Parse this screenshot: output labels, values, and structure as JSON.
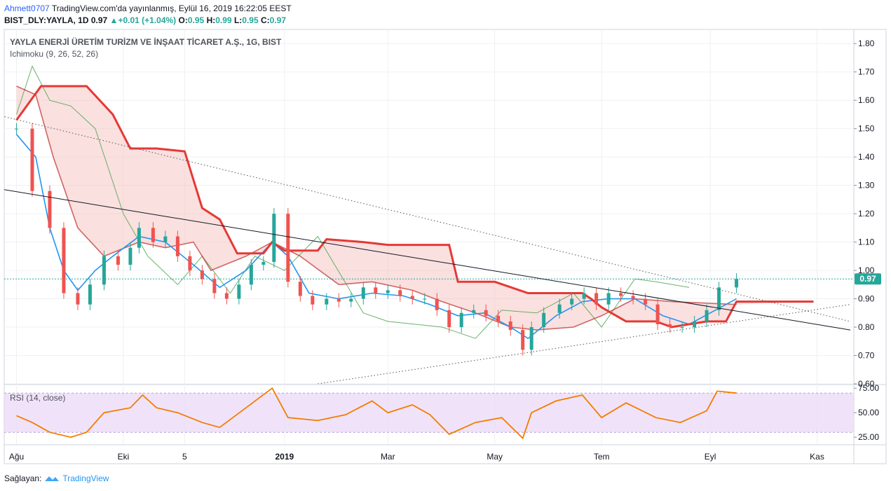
{
  "header": {
    "user": "Ahmett0707",
    "published": "TradingView.com'da yayınlanmış, Eylül 16, 2019 16:22:05 EEST",
    "symbol_line": "BIST_DLY:YAYLA, 1D",
    "last": "0.97",
    "change": "+0.01 (+1.04%)",
    "ohlc_o_label": "O:",
    "ohlc_o": "0.95",
    "ohlc_h_label": "H:",
    "ohlc_h": "0.99",
    "ohlc_l_label": "L:",
    "ohlc_l": "0.95",
    "ohlc_c_label": "C:",
    "ohlc_c": "0.97"
  },
  "footer": {
    "label": "Sağlayan:",
    "brand": "TradingView"
  },
  "colors": {
    "candle_up": "#26a69a",
    "candle_down": "#ef5350",
    "tenkan": "#2196f3",
    "kijun": "#b71c1c",
    "kijun_shift": "#e53935",
    "lagging": "#43a047",
    "cloud_green": "#a5d6a7",
    "cloud_red": "#f5c6c5",
    "rsi_line": "#f57c00",
    "rsi_band": "#e9d7f7",
    "last_price_badge": "#26a69a"
  },
  "chart_data": [
    {
      "type": "candlestick",
      "title": "YAYLA ENERJİ ÜRETİM TURİZM VE İNŞAAT TİCARET A.Ş., 1G, BIST",
      "indicator": "Ichimoku (9, 26, 52, 26)",
      "ylim": [
        0.6,
        1.85
      ],
      "y_ticks": [
        "0.60",
        "0.70",
        "0.80",
        "0.90",
        "1.00",
        "1.10",
        "1.20",
        "1.30",
        "1.40",
        "1.50",
        "1.60",
        "1.70",
        "1.80"
      ],
      "x_ticks": [
        "Ağu",
        "Eki",
        "5",
        "2019",
        "Mar",
        "May",
        "Tem",
        "Eyl",
        "Kas"
      ],
      "last_price": 0.97,
      "last_price_label": "0.97",
      "close_series": [
        {
          "x": "2018-08-01",
          "y": 1.5
        },
        {
          "x": "2018-08-10",
          "y": 1.28
        },
        {
          "x": "2018-08-20",
          "y": 1.15
        },
        {
          "x": "2018-08-28",
          "y": 0.92
        },
        {
          "x": "2018-09-05",
          "y": 0.88
        },
        {
          "x": "2018-09-12",
          "y": 0.95
        },
        {
          "x": "2018-09-20",
          "y": 1.05
        },
        {
          "x": "2018-09-28",
          "y": 1.02
        },
        {
          "x": "2018-10-05",
          "y": 1.08
        },
        {
          "x": "2018-10-10",
          "y": 1.15
        },
        {
          "x": "2018-10-18",
          "y": 1.1
        },
        {
          "x": "2018-10-25",
          "y": 1.12
        },
        {
          "x": "2018-11-01",
          "y": 1.05
        },
        {
          "x": "2018-11-08",
          "y": 1.0
        },
        {
          "x": "2018-11-15",
          "y": 0.97
        },
        {
          "x": "2018-11-22",
          "y": 0.92
        },
        {
          "x": "2018-11-29",
          "y": 0.9
        },
        {
          "x": "2018-12-06",
          "y": 0.95
        },
        {
          "x": "2018-12-13",
          "y": 1.02
        },
        {
          "x": "2018-12-20",
          "y": 1.03
        },
        {
          "x": "2018-12-26",
          "y": 1.2
        },
        {
          "x": "2019-01-03",
          "y": 0.96
        },
        {
          "x": "2019-01-10",
          "y": 0.91
        },
        {
          "x": "2019-01-17",
          "y": 0.88
        },
        {
          "x": "2019-01-25",
          "y": 0.9
        },
        {
          "x": "2019-02-01",
          "y": 0.89
        },
        {
          "x": "2019-02-08",
          "y": 0.9
        },
        {
          "x": "2019-02-15",
          "y": 0.94
        },
        {
          "x": "2019-02-22",
          "y": 0.92
        },
        {
          "x": "2019-03-01",
          "y": 0.93
        },
        {
          "x": "2019-03-08",
          "y": 0.91
        },
        {
          "x": "2019-03-15",
          "y": 0.9
        },
        {
          "x": "2019-03-22",
          "y": 0.9
        },
        {
          "x": "2019-03-29",
          "y": 0.86
        },
        {
          "x": "2019-04-05",
          "y": 0.8
        },
        {
          "x": "2019-04-12",
          "y": 0.85
        },
        {
          "x": "2019-04-19",
          "y": 0.86
        },
        {
          "x": "2019-04-26",
          "y": 0.84
        },
        {
          "x": "2019-05-03",
          "y": 0.82
        },
        {
          "x": "2019-05-10",
          "y": 0.79
        },
        {
          "x": "2019-05-17",
          "y": 0.72
        },
        {
          "x": "2019-05-22",
          "y": 0.8
        },
        {
          "x": "2019-05-29",
          "y": 0.85
        },
        {
          "x": "2019-06-07",
          "y": 0.88
        },
        {
          "x": "2019-06-14",
          "y": 0.9
        },
        {
          "x": "2019-06-21",
          "y": 0.92
        },
        {
          "x": "2019-06-28",
          "y": 0.88
        },
        {
          "x": "2019-07-05",
          "y": 0.92
        },
        {
          "x": "2019-07-12",
          "y": 0.91
        },
        {
          "x": "2019-07-19",
          "y": 0.9
        },
        {
          "x": "2019-07-26",
          "y": 0.88
        },
        {
          "x": "2019-08-02",
          "y": 0.81
        },
        {
          "x": "2019-08-09",
          "y": 0.8
        },
        {
          "x": "2019-08-16",
          "y": 0.8
        },
        {
          "x": "2019-08-23",
          "y": 0.82
        },
        {
          "x": "2019-08-30",
          "y": 0.86
        },
        {
          "x": "2019-09-06",
          "y": 0.94
        },
        {
          "x": "2019-09-16",
          "y": 0.97
        }
      ],
      "tenkan_sen": [
        {
          "x": "2018-08-01",
          "y": 1.48
        },
        {
          "x": "2018-08-12",
          "y": 1.4
        },
        {
          "x": "2018-08-20",
          "y": 1.15
        },
        {
          "x": "2018-08-28",
          "y": 1.0
        },
        {
          "x": "2018-09-05",
          "y": 0.93
        },
        {
          "x": "2018-09-15",
          "y": 1.0
        },
        {
          "x": "2018-09-25",
          "y": 1.05
        },
        {
          "x": "2018-10-10",
          "y": 1.12
        },
        {
          "x": "2018-10-25",
          "y": 1.1
        },
        {
          "x": "2018-11-10",
          "y": 1.02
        },
        {
          "x": "2018-11-25",
          "y": 0.94
        },
        {
          "x": "2018-12-10",
          "y": 1.0
        },
        {
          "x": "2018-12-25",
          "y": 1.1
        },
        {
          "x": "2019-01-03",
          "y": 1.05
        },
        {
          "x": "2019-01-15",
          "y": 0.92
        },
        {
          "x": "2019-02-01",
          "y": 0.9
        },
        {
          "x": "2019-02-20",
          "y": 0.92
        },
        {
          "x": "2019-03-10",
          "y": 0.91
        },
        {
          "x": "2019-03-25",
          "y": 0.88
        },
        {
          "x": "2019-04-10",
          "y": 0.84
        },
        {
          "x": "2019-04-25",
          "y": 0.85
        },
        {
          "x": "2019-05-10",
          "y": 0.8
        },
        {
          "x": "2019-05-20",
          "y": 0.76
        },
        {
          "x": "2019-06-05",
          "y": 0.84
        },
        {
          "x": "2019-06-20",
          "y": 0.89
        },
        {
          "x": "2019-07-05",
          "y": 0.9
        },
        {
          "x": "2019-07-20",
          "y": 0.9
        },
        {
          "x": "2019-08-05",
          "y": 0.84
        },
        {
          "x": "2019-08-20",
          "y": 0.81
        },
        {
          "x": "2019-09-01",
          "y": 0.85
        },
        {
          "x": "2019-09-16",
          "y": 0.9
        }
      ],
      "kijun_sen": [
        {
          "x": "2018-08-01",
          "y": 1.65
        },
        {
          "x": "2018-08-12",
          "y": 1.62
        },
        {
          "x": "2018-08-22",
          "y": 1.4
        },
        {
          "x": "2018-09-05",
          "y": 1.15
        },
        {
          "x": "2018-09-20",
          "y": 1.05
        },
        {
          "x": "2018-10-10",
          "y": 1.1
        },
        {
          "x": "2018-10-25",
          "y": 1.08
        },
        {
          "x": "2018-11-10",
          "y": 1.1
        },
        {
          "x": "2018-11-20",
          "y": 1.0
        },
        {
          "x": "2018-12-10",
          "y": 1.05
        },
        {
          "x": "2018-12-25",
          "y": 1.1
        },
        {
          "x": "2019-01-10",
          "y": 1.05
        },
        {
          "x": "2019-02-01",
          "y": 0.95
        },
        {
          "x": "2019-02-20",
          "y": 0.96
        },
        {
          "x": "2019-03-15",
          "y": 0.93
        },
        {
          "x": "2019-04-01",
          "y": 0.89
        },
        {
          "x": "2019-04-20",
          "y": 0.85
        },
        {
          "x": "2019-05-10",
          "y": 0.8
        },
        {
          "x": "2019-05-25",
          "y": 0.79
        },
        {
          "x": "2019-06-15",
          "y": 0.8
        },
        {
          "x": "2019-07-01",
          "y": 0.84
        },
        {
          "x": "2019-07-20",
          "y": 0.9
        },
        {
          "x": "2019-08-10",
          "y": 0.89
        },
        {
          "x": "2019-09-16",
          "y": 0.88
        }
      ],
      "kijun_shifted": [
        {
          "x": "2018-08-01",
          "y": 1.53
        },
        {
          "x": "2018-08-15",
          "y": 1.65
        },
        {
          "x": "2018-09-10",
          "y": 1.65
        },
        {
          "x": "2018-09-25",
          "y": 1.55
        },
        {
          "x": "2018-10-05",
          "y": 1.43
        },
        {
          "x": "2018-10-20",
          "y": 1.43
        },
        {
          "x": "2018-11-05",
          "y": 1.42
        },
        {
          "x": "2018-11-15",
          "y": 1.22
        },
        {
          "x": "2018-11-25",
          "y": 1.18
        },
        {
          "x": "2018-12-05",
          "y": 1.06
        },
        {
          "x": "2018-12-20",
          "y": 1.06
        },
        {
          "x": "2018-12-25",
          "y": 1.1
        },
        {
          "x": "2019-01-01",
          "y": 1.07
        },
        {
          "x": "2019-01-20",
          "y": 1.07
        },
        {
          "x": "2019-01-25",
          "y": 1.11
        },
        {
          "x": "2019-02-15",
          "y": 1.1
        },
        {
          "x": "2019-03-01",
          "y": 1.09
        },
        {
          "x": "2019-04-05",
          "y": 1.09
        },
        {
          "x": "2019-04-10",
          "y": 0.96
        },
        {
          "x": "2019-05-01",
          "y": 0.96
        },
        {
          "x": "2019-05-20",
          "y": 0.92
        },
        {
          "x": "2019-06-20",
          "y": 0.92
        },
        {
          "x": "2019-06-25",
          "y": 0.9
        },
        {
          "x": "2019-07-01",
          "y": 0.87
        },
        {
          "x": "2019-07-15",
          "y": 0.82
        },
        {
          "x": "2019-08-01",
          "y": 0.82
        },
        {
          "x": "2019-08-10",
          "y": 0.8
        },
        {
          "x": "2019-08-30",
          "y": 0.82
        },
        {
          "x": "2019-09-10",
          "y": 0.82
        },
        {
          "x": "2019-09-16",
          "y": 0.89
        },
        {
          "x": "2019-10-30",
          "y": 0.89
        }
      ],
      "chikou_span": [
        {
          "x": "2018-08-01",
          "y": 1.55
        },
        {
          "x": "2018-08-10",
          "y": 1.72
        },
        {
          "x": "2018-08-20",
          "y": 1.6
        },
        {
          "x": "2018-09-01",
          "y": 1.58
        },
        {
          "x": "2018-09-15",
          "y": 1.5
        },
        {
          "x": "2018-10-01",
          "y": 1.2
        },
        {
          "x": "2018-10-15",
          "y": 1.05
        },
        {
          "x": "2018-11-01",
          "y": 0.95
        },
        {
          "x": "2018-11-15",
          "y": 1.05
        },
        {
          "x": "2018-12-01",
          "y": 0.92
        },
        {
          "x": "2018-12-15",
          "y": 1.05
        },
        {
          "x": "2019-01-01",
          "y": 1.0
        },
        {
          "x": "2019-01-20",
          "y": 1.12
        },
        {
          "x": "2019-02-15",
          "y": 0.85
        },
        {
          "x": "2019-03-01",
          "y": 0.82
        },
        {
          "x": "2019-04-01",
          "y": 0.8
        },
        {
          "x": "2019-04-20",
          "y": 0.76
        },
        {
          "x": "2019-05-05",
          "y": 0.86
        },
        {
          "x": "2019-05-25",
          "y": 0.85
        },
        {
          "x": "2019-06-15",
          "y": 0.92
        },
        {
          "x": "2019-07-01",
          "y": 0.8
        },
        {
          "x": "2019-07-20",
          "y": 0.97
        },
        {
          "x": "2019-08-01",
          "y": 0.96
        },
        {
          "x": "2019-08-20",
          "y": 0.94
        }
      ],
      "trendlines": [
        {
          "style": "solid",
          "from": {
            "x": "2018-07-20",
            "y": 1.29
          },
          "to": {
            "x": "2019-11-20",
            "y": 0.79
          }
        },
        {
          "style": "dotted",
          "from": {
            "x": "2018-07-20",
            "y": 1.55
          },
          "to": {
            "x": "2019-11-20",
            "y": 0.82
          }
        },
        {
          "style": "dotted",
          "from": {
            "x": "2019-01-20",
            "y": 0.6
          },
          "to": {
            "x": "2019-11-20",
            "y": 0.88
          }
        }
      ]
    },
    {
      "type": "line",
      "title": "RSI (14, close)",
      "ylim": [
        18,
        78
      ],
      "y_ticks": [
        "25.00",
        "50.00",
        "75.00"
      ],
      "band": [
        30,
        70
      ],
      "series": [
        {
          "values": [
            {
              "x": "2018-08-01",
              "y": 47
            },
            {
              "x": "2018-08-10",
              "y": 40
            },
            {
              "x": "2018-08-20",
              "y": 30
            },
            {
              "x": "2018-09-01",
              "y": 25
            },
            {
              "x": "2018-09-10",
              "y": 30
            },
            {
              "x": "2018-09-20",
              "y": 50
            },
            {
              "x": "2018-10-05",
              "y": 55
            },
            {
              "x": "2018-10-12",
              "y": 68
            },
            {
              "x": "2018-10-20",
              "y": 55
            },
            {
              "x": "2018-11-01",
              "y": 50
            },
            {
              "x": "2018-11-15",
              "y": 40
            },
            {
              "x": "2018-11-25",
              "y": 35
            },
            {
              "x": "2018-12-10",
              "y": 55
            },
            {
              "x": "2018-12-25",
              "y": 75
            },
            {
              "x": "2019-01-03",
              "y": 45
            },
            {
              "x": "2019-01-20",
              "y": 42
            },
            {
              "x": "2019-02-05",
              "y": 48
            },
            {
              "x": "2019-02-20",
              "y": 62
            },
            {
              "x": "2019-03-01",
              "y": 50
            },
            {
              "x": "2019-03-15",
              "y": 58
            },
            {
              "x": "2019-03-25",
              "y": 48
            },
            {
              "x": "2019-04-05",
              "y": 28
            },
            {
              "x": "2019-04-20",
              "y": 40
            },
            {
              "x": "2019-05-05",
              "y": 45
            },
            {
              "x": "2019-05-17",
              "y": 24
            },
            {
              "x": "2019-05-22",
              "y": 50
            },
            {
              "x": "2019-06-05",
              "y": 62
            },
            {
              "x": "2019-06-20",
              "y": 68
            },
            {
              "x": "2019-07-01",
              "y": 45
            },
            {
              "x": "2019-07-15",
              "y": 60
            },
            {
              "x": "2019-08-01",
              "y": 45
            },
            {
              "x": "2019-08-15",
              "y": 40
            },
            {
              "x": "2019-08-30",
              "y": 52
            },
            {
              "x": "2019-09-05",
              "y": 72
            },
            {
              "x": "2019-09-16",
              "y": 70
            }
          ]
        }
      ]
    }
  ]
}
